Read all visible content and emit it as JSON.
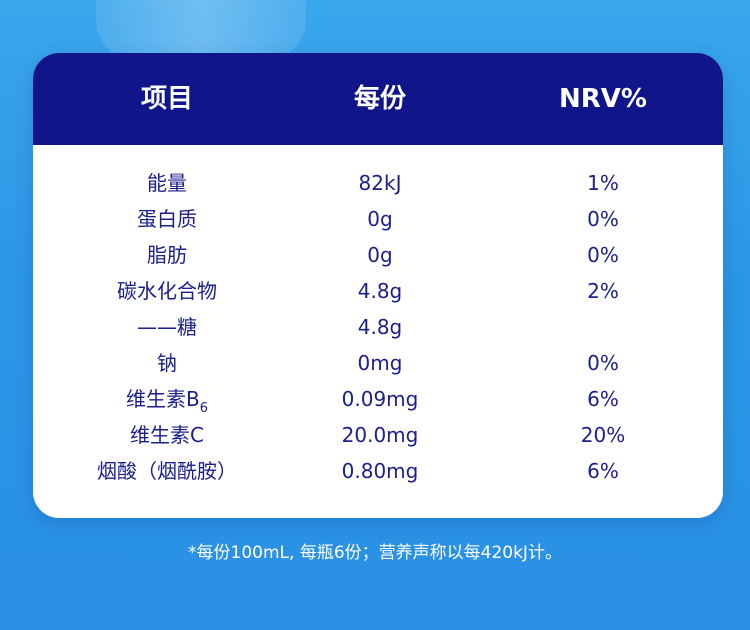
{
  "table": {
    "headers": [
      "项目",
      "每份",
      "NRV%"
    ],
    "rows": [
      {
        "item": "能量",
        "item_sub": "",
        "per_serving": "82kJ",
        "nrv": "1%"
      },
      {
        "item": "蛋白质",
        "item_sub": "",
        "per_serving": "0g",
        "nrv": "0%"
      },
      {
        "item": "脂肪",
        "item_sub": "",
        "per_serving": "0g",
        "nrv": "0%"
      },
      {
        "item": "碳水化合物",
        "item_sub": "",
        "per_serving": "4.8g",
        "nrv": "2%"
      },
      {
        "item": "——糖",
        "item_sub": "",
        "per_serving": "4.8g",
        "nrv": ""
      },
      {
        "item": "钠",
        "item_sub": "",
        "per_serving": "0mg",
        "nrv": "0%"
      },
      {
        "item": "维生素B",
        "item_sub": "6",
        "per_serving": "0.09mg",
        "nrv": "6%"
      },
      {
        "item": "维生素C",
        "item_sub": "",
        "per_serving": "20.0mg",
        "nrv": "20%"
      },
      {
        "item": "烟酸（烟酰胺）",
        "item_sub": "",
        "per_serving": "0.80mg",
        "nrv": "6%"
      }
    ]
  },
  "footnote": "*每份100mL, 每瓶6份；营养声称以每420kJ计。",
  "colors": {
    "header_bg": "#10158a",
    "text": "#1a1f8c",
    "background": "#2b96e6"
  }
}
